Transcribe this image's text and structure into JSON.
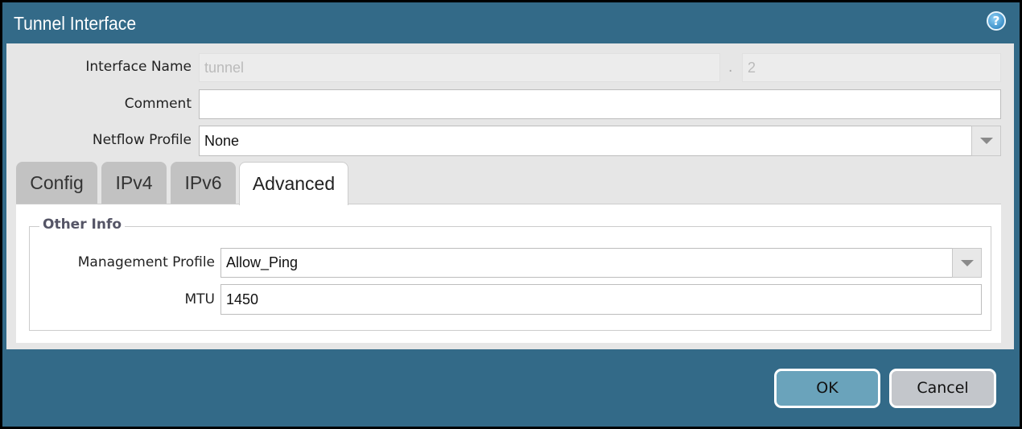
{
  "dialog": {
    "title": "Tunnel Interface",
    "help_icon": "help-icon"
  },
  "form": {
    "interface_name": {
      "label": "Interface Name",
      "value": "tunnel",
      "separator": ".",
      "suffix": "2"
    },
    "comment": {
      "label": "Comment",
      "value": ""
    },
    "netflow_profile": {
      "label": "Netflow Profile",
      "value": "None"
    }
  },
  "tabs": [
    {
      "label": "Config",
      "active": false
    },
    {
      "label": "IPv4",
      "active": false
    },
    {
      "label": "IPv6",
      "active": false
    },
    {
      "label": "Advanced",
      "active": true
    }
  ],
  "advanced": {
    "group_title": "Other Info",
    "management_profile": {
      "label": "Management Profile",
      "value": "Allow_Ping"
    },
    "mtu": {
      "label": "MTU",
      "value": "1450"
    }
  },
  "buttons": {
    "ok": "OK",
    "cancel": "Cancel"
  },
  "colors": {
    "header": "#336a88",
    "ok_button": "#6aa3bb",
    "cancel_button": "#c3c6cb"
  }
}
